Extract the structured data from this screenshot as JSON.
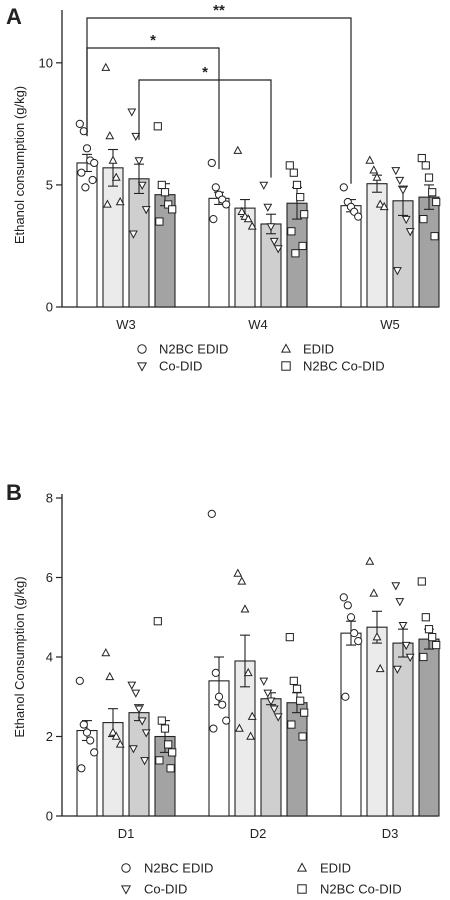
{
  "chart_data": [
    {
      "panel": "A",
      "type": "bar",
      "ylabel": "Ethanol consumption (g/kg)",
      "ylim": [
        0,
        12
      ],
      "yticks": [
        0,
        5,
        10
      ],
      "categories": [
        "W3",
        "W4",
        "W5"
      ],
      "series": [
        {
          "name": "N2BC EDID",
          "marker": "circle",
          "fill": "#ffffff",
          "values": [
            5.9,
            4.45,
            4.15
          ],
          "sem": [
            0.35,
            0.25,
            0.25
          ],
          "points": [
            [
              7.5,
              7.2,
              6.5,
              6.0,
              5.9,
              5.5,
              5.2,
              4.9
            ],
            [
              5.9,
              4.9,
              4.6,
              4.4,
              4.2,
              3.6
            ],
            [
              4.9,
              4.3,
              4.1,
              3.9,
              3.7
            ]
          ]
        },
        {
          "name": "EDID",
          "marker": "triangle",
          "fill": "#ebebeb",
          "values": [
            5.7,
            4.05,
            5.05
          ],
          "sem": [
            0.75,
            0.35,
            0.35
          ],
          "points": [
            [
              9.8,
              7.0,
              6.0,
              5.3,
              4.3,
              4.2
            ],
            [
              6.4,
              3.9,
              3.7,
              3.6,
              3.3
            ],
            [
              6.0,
              5.6,
              5.3,
              4.2,
              4.1
            ]
          ]
        },
        {
          "name": "Co-DID",
          "marker": "triangle-down",
          "fill": "#cfcfcf",
          "values": [
            5.25,
            3.4,
            4.35
          ],
          "sem": [
            0.6,
            0.4,
            0.6
          ],
          "points": [
            [
              8.0,
              7.0,
              6.0,
              5.0,
              4.0,
              3.0
            ],
            [
              5.0,
              4.1,
              3.3,
              2.7,
              2.4
            ],
            [
              5.6,
              5.2,
              4.8,
              3.6,
              3.1,
              1.5
            ]
          ]
        },
        {
          "name": "N2BC Co-DID",
          "marker": "square",
          "fill": "#a3a3a3",
          "values": [
            4.6,
            4.25,
            4.5
          ],
          "sem": [
            0.45,
            0.65,
            0.5
          ],
          "points": [
            [
              7.4,
              5.0,
              4.7,
              4.2,
              4.0,
              3.5
            ],
            [
              5.8,
              5.5,
              5.0,
              4.5,
              3.8,
              3.1,
              2.5,
              2.2
            ],
            [
              6.1,
              5.8,
              5.3,
              4.7,
              4.3,
              3.6,
              2.9
            ]
          ]
        }
      ],
      "significance": [
        {
          "label": "**",
          "from_category": "W3",
          "to_category": "W5"
        },
        {
          "label": "*",
          "from_category": "W3",
          "to_category": "W4"
        },
        {
          "label": "*",
          "from_category": "W3",
          "to_category": "W4"
        }
      ]
    },
    {
      "panel": "B",
      "type": "bar",
      "ylabel": "Ethanol Consumption (g/kg)",
      "ylim": [
        0,
        8
      ],
      "yticks": [
        0,
        2,
        4,
        6,
        8
      ],
      "categories": [
        "D1",
        "D2",
        "D3"
      ],
      "series": [
        {
          "name": "N2BC EDID",
          "marker": "circle",
          "fill": "#ffffff",
          "values": [
            2.15,
            3.4,
            4.6
          ],
          "sem": [
            0.25,
            0.6,
            0.3
          ],
          "points": [
            [
              3.4,
              2.3,
              2.1,
              1.9,
              1.6,
              1.2
            ],
            [
              7.6,
              3.6,
              3.0,
              2.8,
              2.4,
              2.2
            ],
            [
              5.5,
              5.3,
              5.0,
              4.6,
              4.4,
              3.0
            ]
          ]
        },
        {
          "name": "EDID",
          "marker": "triangle",
          "fill": "#ebebeb",
          "values": [
            2.35,
            3.9,
            4.75
          ],
          "sem": [
            0.35,
            0.65,
            0.4
          ],
          "points": [
            [
              4.1,
              3.5,
              2.1,
              2.0,
              1.8
            ],
            [
              6.1,
              5.9,
              5.2,
              3.6,
              2.5,
              2.2,
              2.0
            ],
            [
              6.4,
              5.6,
              4.5,
              3.7
            ]
          ]
        },
        {
          "name": "Co-DID",
          "marker": "triangle-down",
          "fill": "#cfcfcf",
          "values": [
            2.6,
            2.95,
            4.35
          ],
          "sem": [
            0.2,
            0.15,
            0.35
          ],
          "points": [
            [
              3.3,
              3.1,
              2.7,
              2.4,
              2.1,
              1.7,
              1.4
            ],
            [
              3.4,
              3.1,
              2.9,
              2.7,
              2.5
            ],
            [
              5.8,
              5.4,
              4.8,
              4.3,
              4.0,
              3.7
            ]
          ]
        },
        {
          "name": "N2BC Co-DID",
          "marker": "square",
          "fill": "#a3a3a3",
          "values": [
            2.0,
            2.85,
            4.45
          ],
          "sem": [
            0.4,
            0.25,
            0.25
          ],
          "points": [
            [
              4.9,
              2.4,
              2.2,
              1.8,
              1.6,
              1.4,
              1.2
            ],
            [
              4.5,
              3.4,
              3.2,
              2.9,
              2.6,
              2.3,
              2.0
            ],
            [
              5.9,
              5.0,
              4.7,
              4.5,
              4.3,
              4.0
            ]
          ]
        }
      ]
    }
  ]
}
